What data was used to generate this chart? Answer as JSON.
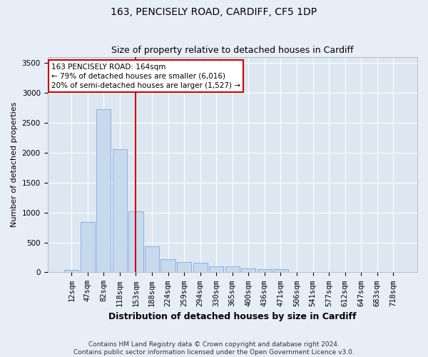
{
  "title1": "163, PENCISELY ROAD, CARDIFF, CF5 1DP",
  "title2": "Size of property relative to detached houses in Cardiff",
  "xlabel": "Distribution of detached houses by size in Cardiff",
  "ylabel": "Number of detached properties",
  "categories": [
    "12sqm",
    "47sqm",
    "82sqm",
    "118sqm",
    "153sqm",
    "188sqm",
    "224sqm",
    "259sqm",
    "294sqm",
    "330sqm",
    "365sqm",
    "400sqm",
    "436sqm",
    "471sqm",
    "506sqm",
    "541sqm",
    "577sqm",
    "612sqm",
    "647sqm",
    "683sqm",
    "718sqm"
  ],
  "bar_heights": [
    45,
    840,
    2720,
    2060,
    1020,
    430,
    220,
    170,
    155,
    105,
    100,
    65,
    55,
    55,
    0,
    0,
    0,
    0,
    0,
    0,
    0
  ],
  "bar_color": "#c8d9ee",
  "bar_edge_color": "#7aaed4",
  "vline_x": 4.5,
  "vline_color": "#cc0000",
  "annotation_text": "163 PENCISELY ROAD: 164sqm\n← 79% of detached houses are smaller (6,016)\n20% of semi-detached houses are larger (1,527) →",
  "annotation_box_color": "#ffffff",
  "annotation_box_edge": "#cc0000",
  "ylim": [
    0,
    3600
  ],
  "yticks": [
    0,
    500,
    1000,
    1500,
    2000,
    2500,
    3000,
    3500
  ],
  "footnote": "Contains HM Land Registry data © Crown copyright and database right 2024.\nContains public sector information licensed under the Open Government Licence v3.0.",
  "bg_color": "#e8eef7",
  "plot_bg_color": "#dde7f2",
  "grid_color": "#ffffff",
  "title1_fontsize": 10,
  "title2_fontsize": 9,
  "xlabel_fontsize": 9,
  "ylabel_fontsize": 8,
  "tick_fontsize": 7.5,
  "annot_fontsize": 7.5,
  "footnote_fontsize": 6.5
}
